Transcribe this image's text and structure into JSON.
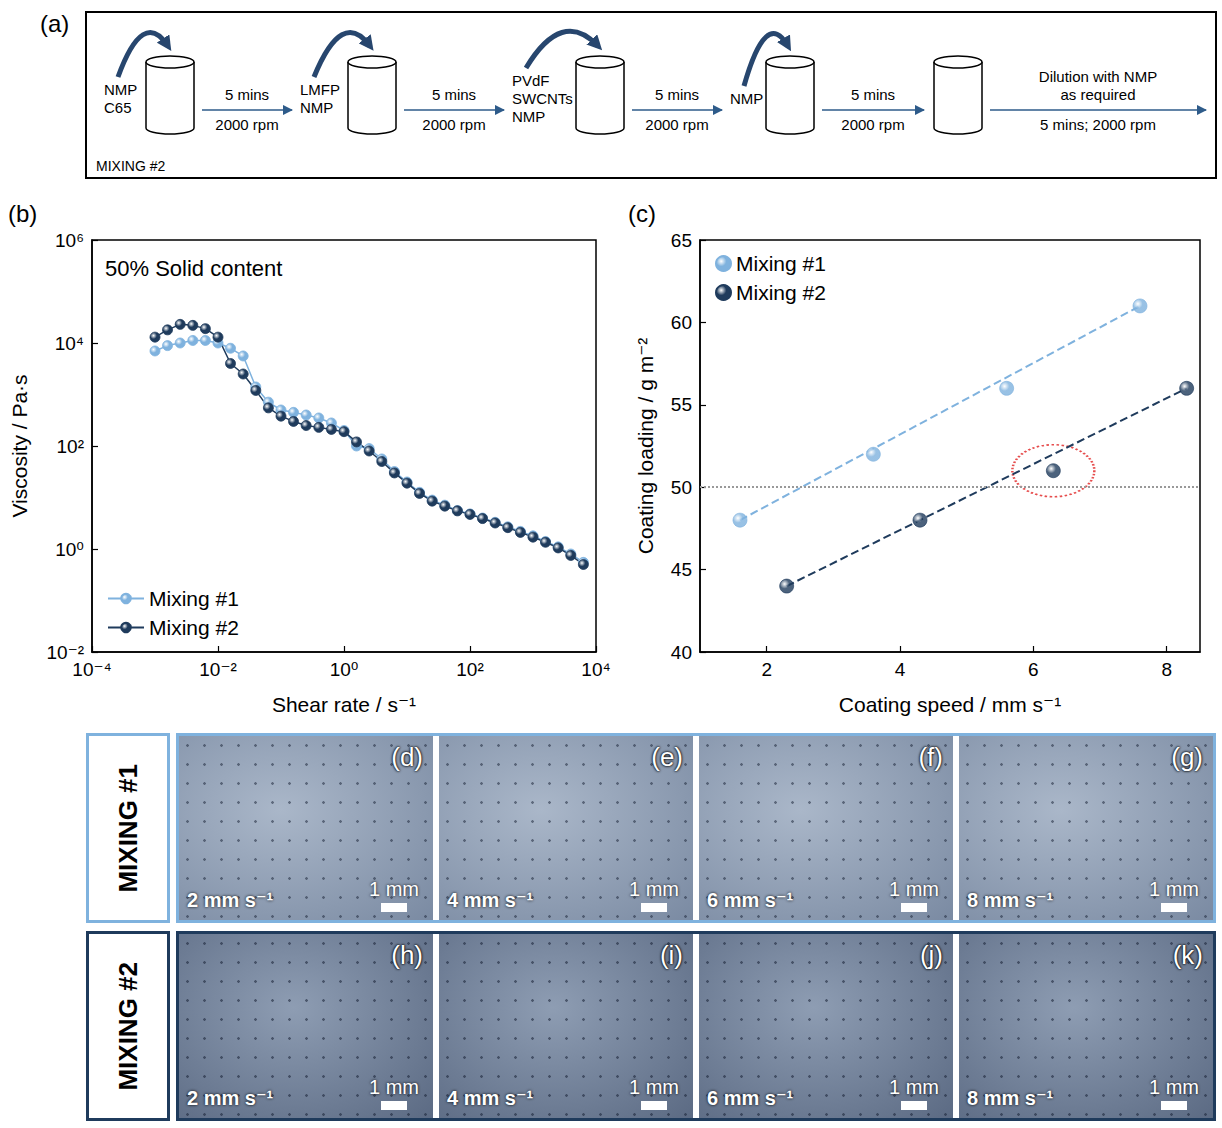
{
  "diagram": {
    "letter": "(a)",
    "label": "MIXING #2",
    "additions": [
      [
        "NMP",
        "C65"
      ],
      [
        "LMFP",
        "NMP"
      ],
      [
        "PVdF",
        "SWCNTs",
        "NMP"
      ],
      [
        "NMP"
      ]
    ],
    "mixes": [
      {
        "time": "5 mins",
        "speed": "2000 rpm"
      },
      {
        "time": "5 mins",
        "speed": "2000 rpm"
      },
      {
        "time": "5 mins",
        "speed": "2000 rpm"
      },
      {
        "time": "5 mins",
        "speed": "2000 rpm"
      }
    ],
    "final_step": {
      "note": [
        "Dilution with NMP",
        "as required"
      ],
      "mix": "5 mins; 2000 rpm"
    }
  },
  "chart_data": [
    {
      "letter": "(b)",
      "type": "line",
      "annotation": "50% Solid content",
      "x_label": "Shear rate / s⁻¹",
      "y_label": "Viscosity / Pa·s",
      "log": true,
      "grid": false,
      "legend": "bottom-left",
      "marker": "circle",
      "x": [
        0.001,
        0.00158,
        0.00251,
        0.00398,
        0.00631,
        0.01,
        0.0158,
        0.0251,
        0.0398,
        0.0631,
        0.1,
        0.158,
        0.251,
        0.398,
        0.631,
        1,
        1.58,
        2.51,
        3.98,
        6.31,
        10,
        15.8,
        25.1,
        39.8,
        63.1,
        100,
        158,
        251,
        398,
        631,
        1000,
        1580,
        2510,
        3980,
        6310
      ],
      "series": [
        {
          "name": "Mixing #1",
          "color": "#7fb2de",
          "values": [
            7000,
            8900,
            10000,
            11200,
            11200,
            10000,
            7900,
            5600,
            1400,
            710,
            500,
            450,
            400,
            350,
            280,
            200,
            100,
            89,
            56,
            32,
            20,
            12.6,
            8.9,
            7.1,
            5.6,
            4.8,
            4.0,
            3.3,
            2.7,
            2.2,
            1.8,
            1.4,
            1.1,
            0.8,
            0.55
          ]
        },
        {
          "name": "Mixing #2",
          "color": "#1f3b5c",
          "values": [
            13000,
            18000,
            23000,
            22000,
            19000,
            13000,
            4000,
            2500,
            1200,
            550,
            380,
            300,
            250,
            230,
            210,
            190,
            120,
            80,
            50,
            30,
            19,
            12,
            8.5,
            6.8,
            5.5,
            4.7,
            3.9,
            3.2,
            2.6,
            2.1,
            1.7,
            1.35,
            1.05,
            0.75,
            0.5
          ]
        }
      ],
      "xlim": [
        0.0001,
        10000
      ],
      "ylim": [
        0.01,
        1000000
      ],
      "xticks": [
        {
          "value": 0.0001,
          "label": "10⁻⁴"
        },
        {
          "value": 0.01,
          "label": "10⁻²"
        },
        {
          "value": 1,
          "label": "10⁰"
        },
        {
          "value": 100,
          "label": "10²"
        },
        {
          "value": 10000,
          "label": "10⁴"
        }
      ],
      "yticks": [
        {
          "value": 0.01,
          "label": "10⁻²"
        },
        {
          "value": 1,
          "label": "10⁰"
        },
        {
          "value": 100,
          "label": "10²"
        },
        {
          "value": 10000,
          "label": "10⁴"
        },
        {
          "value": 1000000,
          "label": "10⁶"
        }
      ]
    },
    {
      "letter": "(c)",
      "type": "scatter",
      "x_label": "Coating speed / mm s⁻¹",
      "y_label": "Coating loading / g m⁻²",
      "grid": false,
      "legend": "top-left",
      "marker": "circle",
      "xlim": [
        1,
        8.5
      ],
      "ylim": [
        40,
        65
      ],
      "xticks": [
        2,
        4,
        6,
        8
      ],
      "yticks": [
        40,
        45,
        50,
        55,
        60,
        65
      ],
      "reference_y": {
        "value": 50,
        "color": "#999999",
        "line_style": "dotted"
      },
      "series": [
        {
          "name": "Mixing #1",
          "color": "#7fb2de",
          "x": [
            1.6,
            3.6,
            5.6,
            7.6
          ],
          "values": [
            48,
            52,
            56,
            61
          ],
          "fit": {
            "x": [
              1.6,
              7.6
            ],
            "values": [
              48,
              61
            ],
            "line_style": "dashed"
          }
        },
        {
          "name": "Mixing #2",
          "color": "#1f3b5c",
          "x": [
            2.3,
            4.3,
            6.3,
            8.3
          ],
          "values": [
            44,
            48,
            51,
            56
          ],
          "fit": {
            "x": [
              2.3,
              8.3
            ],
            "values": [
              44,
              56
            ],
            "line_style": "dashed"
          }
        }
      ],
      "highlight": {
        "x": 6.3,
        "y": 51,
        "color": "#e02020",
        "line_style": "dotted"
      }
    }
  ],
  "micrographs": {
    "rows": [
      {
        "label": "MIXING #1",
        "color": "#7fb2de",
        "panels": [
          {
            "letter": "(d)",
            "speed": "2 mm s⁻¹",
            "scale_bar": "1 mm"
          },
          {
            "letter": "(e)",
            "speed": "4 mm s⁻¹",
            "scale_bar": "1 mm"
          },
          {
            "letter": "(f)",
            "speed": "6 mm s⁻¹",
            "scale_bar": "1 mm"
          },
          {
            "letter": "(g)",
            "speed": "8 mm s⁻¹",
            "scale_bar": "1 mm"
          }
        ]
      },
      {
        "label": "MIXING #2",
        "color": "#1f3b5c",
        "panels": [
          {
            "letter": "(h)",
            "speed": "2 mm s⁻¹",
            "scale_bar": "1 mm"
          },
          {
            "letter": "(i)",
            "speed": "4 mm s⁻¹",
            "scale_bar": "1 mm"
          },
          {
            "letter": "(j)",
            "speed": "6 mm s⁻¹",
            "scale_bar": "1 mm"
          },
          {
            "letter": "(k)",
            "speed": "8 mm s⁻¹",
            "scale_bar": "1 mm"
          }
        ]
      }
    ]
  }
}
